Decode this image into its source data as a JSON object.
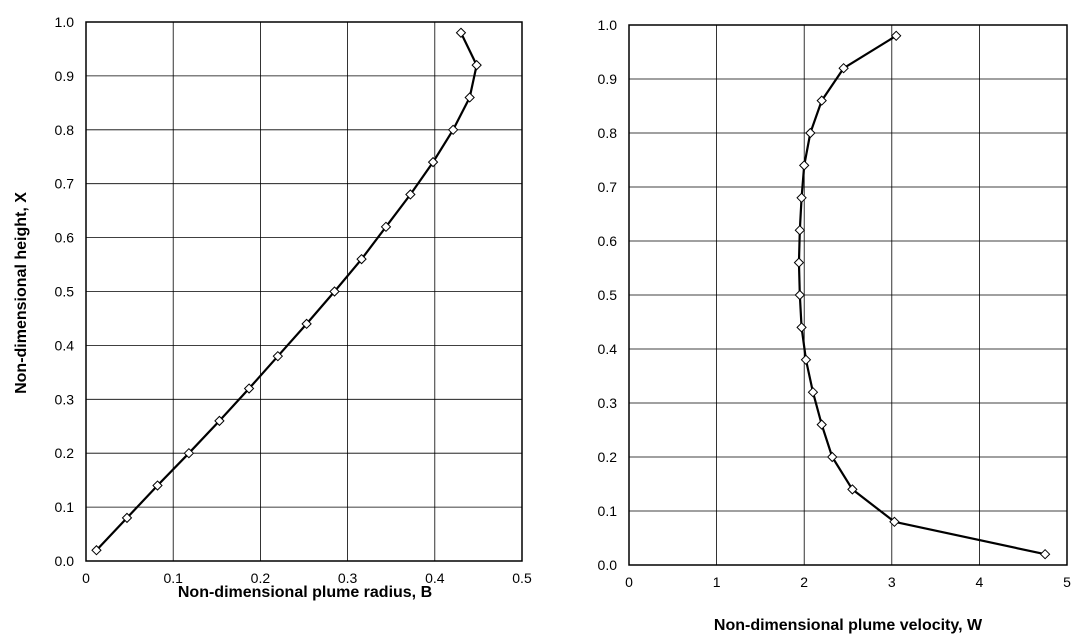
{
  "chart_data": [
    {
      "type": "line",
      "xlabel": "Non-dimensional plume radius, B",
      "ylabel": "Non-dimensional height, X",
      "xlim": [
        0,
        0.5
      ],
      "ylim": [
        0,
        1.0
      ],
      "x_ticks": [
        "0",
        "0.1",
        "0.2",
        "0.3",
        "0.4",
        "0.5"
      ],
      "y_ticks": [
        "0.0",
        "0.1",
        "0.2",
        "0.3",
        "0.4",
        "0.5",
        "0.6",
        "0.7",
        "0.8",
        "0.9",
        "1.0"
      ],
      "grid": true,
      "marker": "diamond",
      "series": [
        {
          "x": [
            0.012,
            0.047,
            0.082,
            0.118,
            0.153,
            0.187,
            0.22,
            0.253,
            0.285,
            0.316,
            0.344,
            0.372,
            0.398,
            0.421,
            0.44,
            0.448,
            0.43
          ],
          "y": [
            0.02,
            0.08,
            0.14,
            0.2,
            0.26,
            0.32,
            0.38,
            0.44,
            0.5,
            0.56,
            0.62,
            0.68,
            0.74,
            0.8,
            0.86,
            0.92,
            0.98
          ]
        }
      ]
    },
    {
      "type": "line",
      "xlabel": "Non-dimensional plume velocity, W",
      "ylabel": "",
      "xlim": [
        0,
        5
      ],
      "ylim": [
        0,
        1.0
      ],
      "x_ticks": [
        "0",
        "1",
        "2",
        "3",
        "4",
        "5"
      ],
      "y_ticks": [
        "0.0",
        "0.1",
        "0.2",
        "0.3",
        "0.4",
        "0.5",
        "0.6",
        "0.7",
        "0.8",
        "0.9",
        "1.0"
      ],
      "grid": true,
      "marker": "diamond",
      "series": [
        {
          "x": [
            4.75,
            3.03,
            2.55,
            2.32,
            2.2,
            2.1,
            2.02,
            1.97,
            1.95,
            1.94,
            1.95,
            1.97,
            2.0,
            2.07,
            2.2,
            2.45,
            3.05
          ],
          "y": [
            0.02,
            0.08,
            0.14,
            0.2,
            0.26,
            0.32,
            0.38,
            0.44,
            0.5,
            0.56,
            0.62,
            0.68,
            0.74,
            0.8,
            0.86,
            0.92,
            0.98
          ]
        }
      ]
    }
  ]
}
